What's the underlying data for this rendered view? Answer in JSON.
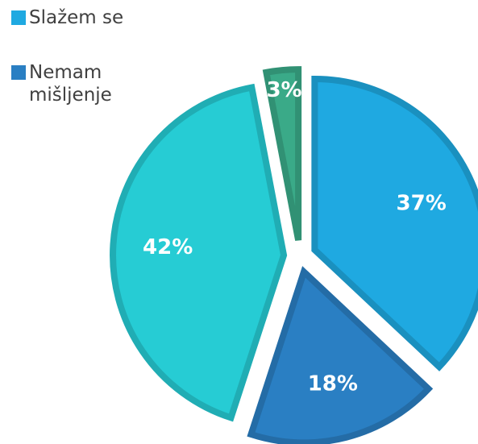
{
  "chart_data": {
    "type": "pie",
    "categories": [
      "Slažem se",
      "Nemam mišljenje",
      null,
      null
    ],
    "values": [
      37,
      18,
      42,
      3
    ],
    "value_labels": [
      "37%",
      "18%",
      "42%",
      "3%"
    ],
    "colors": [
      "#1fa9e1",
      "#2a7fc3",
      "#26ccd4",
      "#3aaa88"
    ],
    "legend": "top-left"
  }
}
